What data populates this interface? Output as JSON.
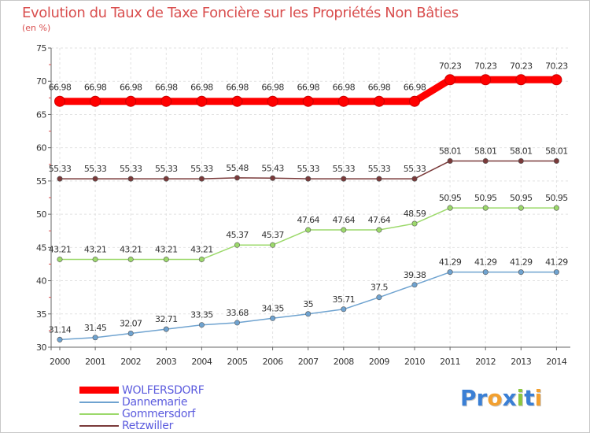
{
  "title": "Evolution du Taux de Taxe Foncière sur les Propriétés Non Bâties",
  "unit_label": "(en %)",
  "logo": {
    "text": "Proxiti",
    "letters": [
      {
        "ch": "P",
        "color": "#3a7fd5"
      },
      {
        "ch": "r",
        "color": "#3a7fd5"
      },
      {
        "ch": "o",
        "color": "#f2a030"
      },
      {
        "ch": "x",
        "color": "#3a7fd5"
      },
      {
        "ch": "i",
        "color": "#8cc63f"
      },
      {
        "ch": "t",
        "color": "#3a7fd5"
      },
      {
        "ch": "i",
        "color": "#f2a030"
      }
    ]
  },
  "chart_data": {
    "type": "line",
    "title": "Evolution du Taux de Taxe Foncière sur les Propriétés Non Bâties",
    "xlabel": "",
    "ylabel": "(en %)",
    "ylim": [
      30,
      75
    ],
    "yticks": [
      30,
      35,
      40,
      45,
      50,
      55,
      60,
      65,
      70,
      75
    ],
    "grid": true,
    "legend_position": "bottom-left",
    "x": [
      "2000",
      "2001",
      "2002",
      "2003",
      "2004",
      "2005",
      "2006",
      "2007",
      "2008",
      "2009",
      "2010",
      "2011",
      "2012",
      "2013",
      "2014"
    ],
    "series": [
      {
        "name": "WOLFERSDORF",
        "color": "#ff0000",
        "highlight": true,
        "values": [
          66.98,
          66.98,
          66.98,
          66.98,
          66.98,
          66.98,
          66.98,
          66.98,
          66.98,
          66.98,
          66.98,
          70.23,
          70.23,
          70.23,
          70.23
        ],
        "labels": [
          "66.98",
          "66.98",
          "66.98",
          "66.98",
          "66.98",
          "66.98",
          "66.98",
          "66.98",
          "66.98",
          "66.98",
          "66.98",
          "70.23",
          "70.23",
          "70.23",
          "70.23"
        ]
      },
      {
        "name": "Dannemarie",
        "color": "#6fa3d0",
        "highlight": false,
        "values": [
          31.14,
          31.45,
          32.07,
          32.71,
          33.35,
          33.68,
          34.35,
          35,
          35.71,
          37.5,
          39.38,
          41.29,
          41.29,
          41.29,
          41.29
        ],
        "labels": [
          "31.14",
          "31.45",
          "32.07",
          "32.71",
          "33.35",
          "33.68",
          "34.35",
          "35",
          "35.71",
          "37.5",
          "39.38",
          "41.29",
          "41.29",
          "41.29",
          "41.29"
        ]
      },
      {
        "name": "Gommersdorf",
        "color": "#9cd96b",
        "highlight": false,
        "values": [
          43.21,
          43.21,
          43.21,
          43.21,
          43.21,
          45.37,
          45.37,
          47.64,
          47.64,
          47.64,
          48.59,
          50.95,
          50.95,
          50.95,
          50.95
        ],
        "labels": [
          "43.21",
          "43.21",
          "43.21",
          "43.21",
          "43.21",
          "45.37",
          "45.37",
          "47.64",
          "47.64",
          "47.64",
          "48.59",
          "50.95",
          "50.95",
          "50.95",
          "50.95"
        ]
      },
      {
        "name": "Retzwiller",
        "color": "#7a3a3a",
        "highlight": false,
        "values": [
          55.33,
          55.33,
          55.33,
          55.33,
          55.33,
          55.48,
          55.43,
          55.33,
          55.33,
          55.33,
          55.33,
          58.01,
          58.01,
          58.01,
          58.01
        ],
        "labels": [
          "55.33",
          "55.33",
          "55.33",
          "55.33",
          "55.33",
          "55.48",
          "55.43",
          "55.33",
          "55.33",
          "55.33",
          "55.33",
          "58.01",
          "58.01",
          "58.01",
          "58.01"
        ]
      }
    ]
  }
}
